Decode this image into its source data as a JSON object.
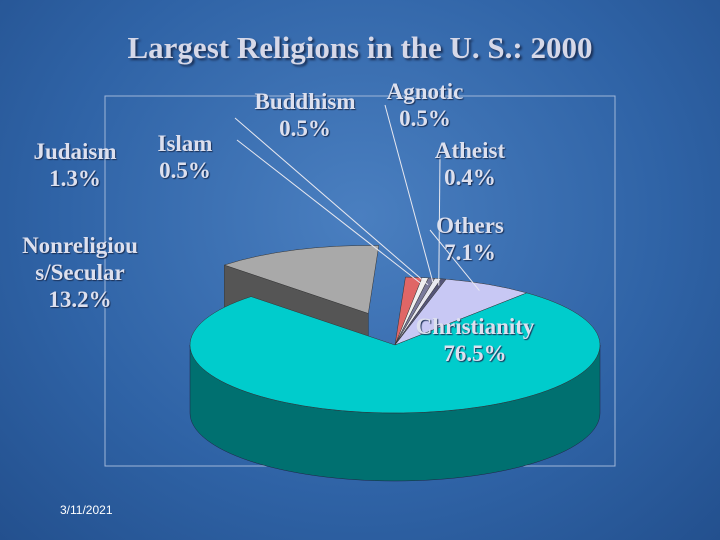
{
  "chart_data": {
    "type": "pie",
    "title": "Largest Religions in the U. S.: 2000",
    "categories": [
      "Christianity",
      "Nonreligious/Secular",
      "Judaism",
      "Islam",
      "Buddhism",
      "Agnotic",
      "Atheist",
      "Others"
    ],
    "values": [
      76.5,
      13.2,
      1.3,
      0.5,
      0.5,
      0.5,
      0.4,
      7.1
    ],
    "value_labels": [
      "76.5%",
      "13.2%",
      "1.3%",
      "0.5%",
      "0.5%",
      "0.5%",
      "0.4%",
      "7.1%"
    ],
    "colors": [
      "#00cccc",
      "#a9a9a9",
      "#e06666",
      "#f0f0f0",
      "#7a7a9a",
      "#e8e8f0",
      "#555577",
      "#c8c8f4"
    ]
  },
  "footer": {
    "date": "3/11/2021"
  }
}
